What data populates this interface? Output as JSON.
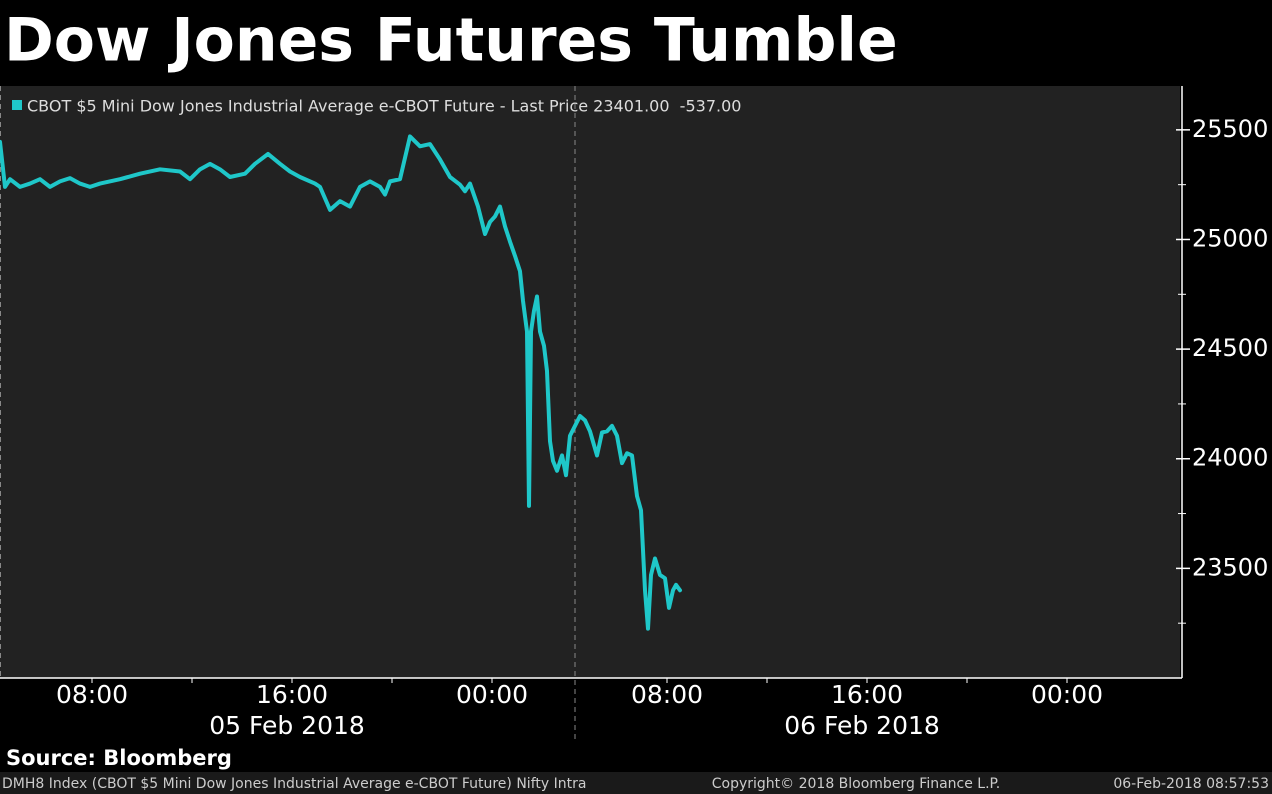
{
  "chart_data": {
    "type": "line",
    "title": "Dow Jones Futures Tumble",
    "series": [
      {
        "name": "CBOT $5 Mini Dow Jones Industrial Average e-CBOT Future - Last Price 23401.00  -537.00",
        "color": "#1fc7c9",
        "values": [
          25445,
          25240,
          25275,
          25240,
          25255,
          25275,
          25240,
          25265,
          25280,
          25255,
          25240,
          25255,
          25275,
          25300,
          25320,
          25310,
          25275,
          25320,
          25345,
          25320,
          25285,
          25300,
          25345,
          25390,
          25345,
          25310,
          25285,
          25255,
          25240,
          25135,
          25175,
          25150,
          25240,
          25265,
          25240,
          25205,
          25265,
          25275,
          25470,
          25425,
          25435,
          25365,
          25285,
          25250,
          25220,
          25255,
          25150,
          25025,
          25080,
          25105,
          25150,
          25060,
          24990,
          24925,
          24855,
          24720,
          24580,
          23785,
          24580,
          24675,
          24740,
          24580,
          24515,
          24400,
          24080,
          23990,
          23945,
          24015,
          23925,
          24105,
          24150,
          24195,
          24175,
          24125,
          24015,
          24120,
          24125,
          24150,
          24105,
          23980,
          24025,
          24015,
          23830,
          23765,
          23400,
          23225,
          23470,
          23545,
          23470,
          23455,
          23320,
          23400,
          23425,
          23400
        ]
      }
    ],
    "x": [
      4.32,
      4.52,
      4.72,
      5.12,
      5.52,
      5.92,
      6.32,
      6.72,
      7.12,
      7.52,
      7.92,
      8.32,
      9.12,
      9.92,
      10.72,
      11.52,
      11.92,
      12.32,
      12.72,
      13.12,
      13.52,
      14.12,
      14.52,
      15.04,
      15.52,
      15.92,
      16.32,
      16.92,
      17.12,
      17.52,
      17.92,
      18.32,
      18.72,
      19.12,
      19.52,
      19.72,
      19.92,
      20.32,
      20.72,
      21.12,
      21.52,
      21.92,
      22.32,
      22.72,
      22.92,
      23.12,
      23.44,
      23.72,
      23.92,
      24.12,
      24.32,
      24.52,
      24.72,
      24.92,
      25.12,
      25.24,
      25.4,
      25.48,
      25.56,
      25.68,
      25.8,
      25.92,
      26.08,
      26.2,
      26.32,
      26.44,
      26.6,
      26.8,
      26.96,
      27.12,
      27.32,
      27.52,
      27.72,
      27.92,
      28.2,
      28.4,
      28.6,
      28.8,
      29,
      29.2,
      29.4,
      29.6,
      29.8,
      29.96,
      30.12,
      30.24,
      30.36,
      30.52,
      30.72,
      30.92,
      31.08,
      31.24,
      31.36,
      31.52
    ],
    "xlim": [
      4.32,
      51.52
    ],
    "xticks": [
      {
        "value": 8,
        "label": "08:00"
      },
      {
        "value": 16,
        "label": "16:00"
      },
      {
        "value": 24,
        "label": "00:00"
      },
      {
        "value": 31,
        "label": "08:00"
      },
      {
        "value": 39,
        "label": "16:00"
      },
      {
        "value": 47,
        "label": "00:00"
      }
    ],
    "xminor": [
      12,
      20,
      35,
      43
    ],
    "date_labels": [
      {
        "value": 15.8,
        "label": "05 Feb 2018"
      },
      {
        "value": 38.8,
        "label": "06 Feb 2018"
      }
    ],
    "date_separator": 27.32,
    "ylim": [
      23000,
      25700
    ],
    "yticks": [
      23500,
      24000,
      24500,
      25000,
      25500
    ],
    "yminor": [
      23250,
      23750,
      24250,
      24750,
      25250
    ],
    "source": "Source: Bloomberg",
    "footer": {
      "left": "DMH8 Index (CBOT $5 Mini Dow Jones Industrial Average e-CBOT Future) Nifty Intra",
      "center": "Copyright© 2018 Bloomberg Finance L.P.",
      "right": "06-Feb-2018 08:57:53"
    }
  }
}
